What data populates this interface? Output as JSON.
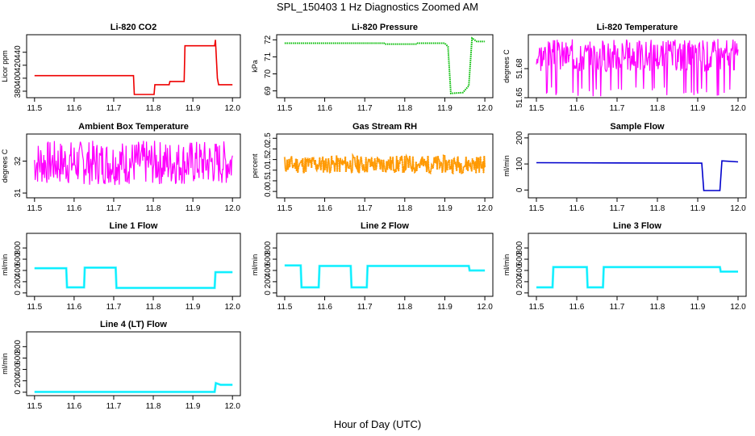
{
  "title": "SPL_150403  1 Hz Diagnostics Zoomed AM",
  "xlabel": "Hour of Day (UTC)",
  "chart_data": [
    {
      "type": "line",
      "title": "Li-820 CO2",
      "ylabel": "Licor ppm",
      "xlim": [
        11.48,
        12.02
      ],
      "xticks": [
        11.5,
        11.6,
        11.7,
        11.8,
        11.9,
        12.0
      ],
      "ylim": [
        370,
        467
      ],
      "yticks": [
        380,
        400,
        420,
        440
      ],
      "color": "#ee0000",
      "style": "line",
      "series": [
        {
          "x": [
            11.5,
            11.75,
            11.752,
            11.802,
            11.804,
            11.84,
            11.842,
            11.878,
            11.88,
            11.955,
            11.957,
            11.962,
            11.965,
            12.0
          ],
          "y": [
            404,
            404,
            375,
            375,
            390,
            390,
            395,
            395,
            450,
            450,
            459,
            400,
            390,
            390
          ]
        }
      ]
    },
    {
      "type": "line",
      "title": "Li-820 Pressure",
      "ylabel": "kPa",
      "xlim": [
        11.48,
        12.02
      ],
      "xticks": [
        11.5,
        11.6,
        11.7,
        11.8,
        11.9,
        12.0
      ],
      "ylim": [
        68.6,
        72.3
      ],
      "yticks": [
        69,
        70,
        71,
        72
      ],
      "color": "#00bb00",
      "style": "dots",
      "series": [
        {
          "x": [
            11.5,
            11.748,
            11.75,
            11.83,
            11.832,
            11.9,
            11.908,
            11.915,
            11.945,
            11.96,
            11.968,
            11.98,
            12.0
          ],
          "y": [
            71.8,
            71.8,
            71.75,
            71.75,
            71.8,
            71.8,
            71.6,
            68.85,
            68.9,
            69.3,
            72.1,
            71.9,
            71.9
          ]
        }
      ]
    },
    {
      "type": "line",
      "title": "Li-820 Temperature",
      "ylabel": "degrees C",
      "xlim": [
        11.48,
        12.02
      ],
      "xticks": [
        11.5,
        11.6,
        11.7,
        11.8,
        11.9,
        12.0
      ],
      "ylim": [
        51.65,
        51.715
      ],
      "yticks": [
        51.65,
        51.68
      ],
      "color": "#ff00ff",
      "style": "noise",
      "noise_range": [
        51.677,
        51.711
      ],
      "spike_low": 51.651,
      "seed": 3,
      "series": []
    },
    {
      "type": "line",
      "title": "Ambient Box Temperature",
      "ylabel": "degrees C",
      "xlim": [
        11.48,
        12.02
      ],
      "xticks": [
        11.5,
        11.6,
        11.7,
        11.8,
        11.9,
        12.0
      ],
      "ylim": [
        30.85,
        32.85
      ],
      "yticks": [
        31.0,
        32.0
      ],
      "color": "#ff00ff",
      "style": "noise",
      "noise_range": [
        31.25,
        32.65
      ],
      "seed": 7,
      "series": []
    },
    {
      "type": "line",
      "title": "Gas Stream RH",
      "ylabel": "percent",
      "xlim": [
        11.48,
        12.02
      ],
      "xticks": [
        11.5,
        11.6,
        11.7,
        11.8,
        11.9,
        12.0
      ],
      "ylim": [
        -0.3,
        2.7
      ],
      "yticks": [
        0.0,
        0.5,
        1.0,
        1.5,
        2.0,
        2.5
      ],
      "color": "#ff9900",
      "style": "noise",
      "noise_range": [
        0.85,
        1.7
      ],
      "seed": 11,
      "series": []
    },
    {
      "type": "line",
      "title": "Sample Flow",
      "ylabel": "ml/min",
      "xlim": [
        11.48,
        12.02
      ],
      "xticks": [
        11.5,
        11.6,
        11.7,
        11.8,
        11.9,
        12.0
      ],
      "ylim": [
        -30,
        215
      ],
      "yticks": [
        0,
        100,
        200
      ],
      "color": "#0000cc",
      "style": "line",
      "series": [
        {
          "x": [
            11.5,
            11.91,
            11.915,
            11.955,
            11.96,
            12.0
          ],
          "y": [
            105,
            103,
            -2,
            -2,
            112,
            108
          ]
        }
      ]
    },
    {
      "type": "line",
      "title": "Line 1 Flow",
      "ylabel": "ml/min",
      "xlim": [
        11.48,
        12.02
      ],
      "xticks": [
        11.5,
        11.6,
        11.7,
        11.8,
        11.9,
        12.0
      ],
      "ylim": [
        -60,
        1060
      ],
      "yticks": [
        0,
        200,
        400,
        600,
        800
      ],
      "color": "#00eeff",
      "style": "line",
      "series": [
        {
          "x": [
            11.5,
            11.58,
            11.582,
            11.625,
            11.627,
            11.705,
            11.707,
            11.955,
            11.957,
            12.0
          ],
          "y": [
            440,
            440,
            100,
            100,
            450,
            450,
            90,
            90,
            370,
            370
          ]
        }
      ]
    },
    {
      "type": "line",
      "title": "Line 2 Flow",
      "ylabel": "ml/min",
      "xlim": [
        11.48,
        12.02
      ],
      "xticks": [
        11.5,
        11.6,
        11.7,
        11.8,
        11.9,
        12.0
      ],
      "ylim": [
        -60,
        1060
      ],
      "yticks": [
        0,
        200,
        400,
        600,
        800
      ],
      "color": "#00eeff",
      "style": "line",
      "series": [
        {
          "x": [
            11.5,
            11.54,
            11.542,
            11.585,
            11.587,
            11.665,
            11.667,
            11.705,
            11.707,
            11.96,
            11.962,
            12.0
          ],
          "y": [
            490,
            490,
            100,
            100,
            480,
            480,
            100,
            100,
            480,
            480,
            400,
            400
          ]
        }
      ]
    },
    {
      "type": "line",
      "title": "Line 3 Flow",
      "ylabel": "ml/min",
      "xlim": [
        11.48,
        12.02
      ],
      "xticks": [
        11.5,
        11.6,
        11.7,
        11.8,
        11.9,
        12.0
      ],
      "ylim": [
        -60,
        1060
      ],
      "yticks": [
        0,
        200,
        400,
        600,
        800
      ],
      "color": "#00eeff",
      "style": "line",
      "series": [
        {
          "x": [
            11.5,
            11.54,
            11.542,
            11.625,
            11.627,
            11.665,
            11.667,
            11.955,
            11.957,
            12.0
          ],
          "y": [
            100,
            100,
            460,
            460,
            100,
            100,
            460,
            460,
            380,
            380
          ]
        }
      ]
    },
    {
      "type": "line",
      "title": "Line 4 (LT) Flow",
      "ylabel": "ml/min",
      "xlim": [
        11.48,
        12.02
      ],
      "xticks": [
        11.5,
        11.6,
        11.7,
        11.8,
        11.9,
        12.0
      ],
      "ylim": [
        -60,
        1060
      ],
      "yticks": [
        0,
        200,
        400,
        600,
        800
      ],
      "color": "#00eeff",
      "style": "line",
      "series": [
        {
          "x": [
            11.5,
            11.955,
            11.958,
            11.97,
            12.0
          ],
          "y": [
            5,
            5,
            160,
            130,
            130
          ]
        }
      ]
    }
  ]
}
